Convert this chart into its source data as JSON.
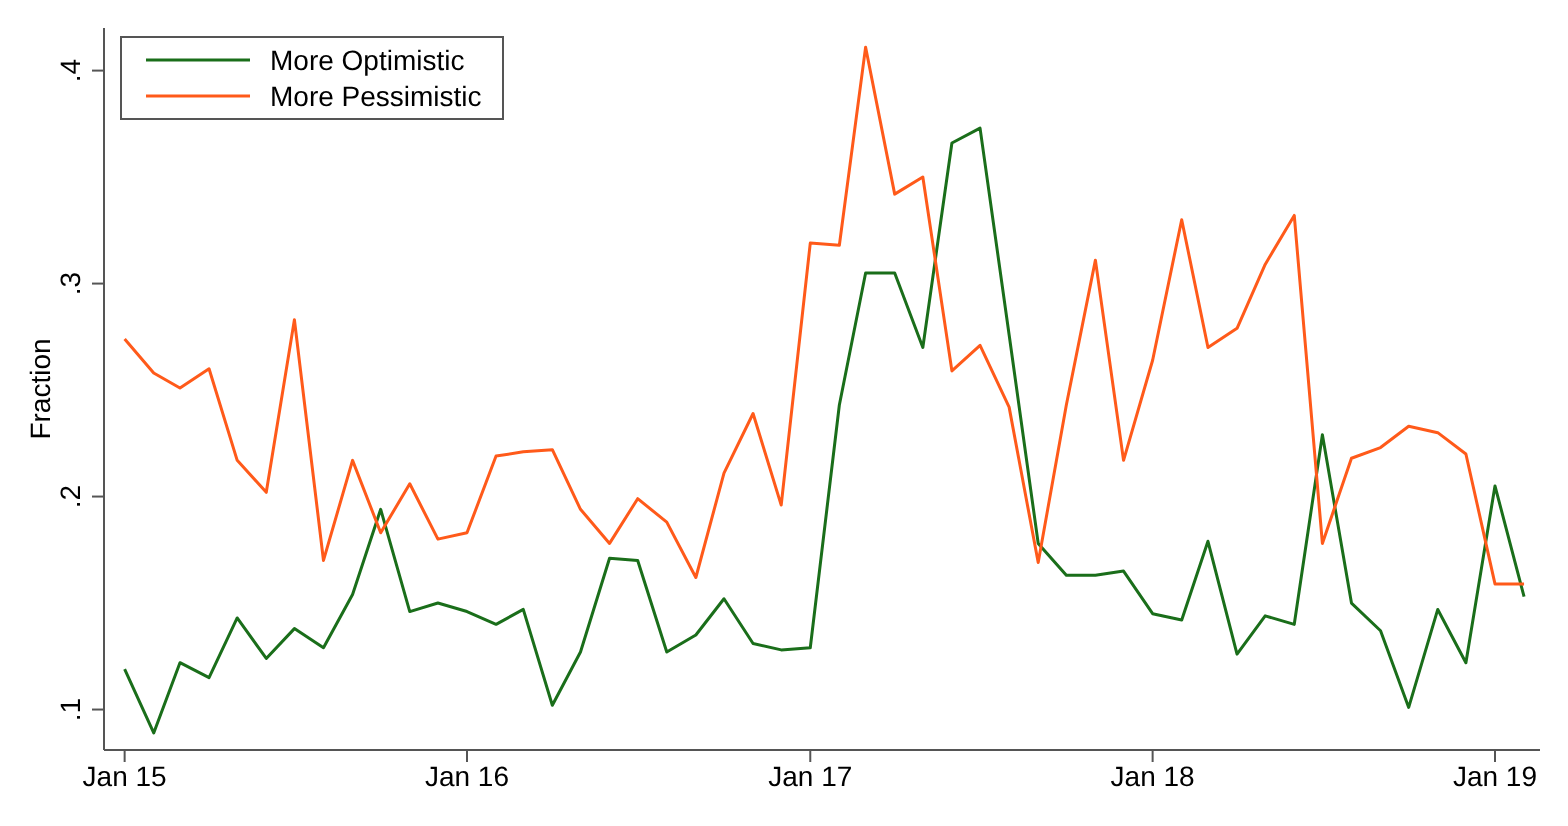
{
  "chart_data": {
    "type": "line",
    "ylabel": "Fraction",
    "x": [
      "2015-01",
      "2015-02",
      "2015-03",
      "2015-04",
      "2015-05",
      "2015-06",
      "2015-07",
      "2015-08",
      "2015-09",
      "2015-10",
      "2015-11",
      "2015-12",
      "2016-01",
      "2016-02",
      "2016-03",
      "2016-04",
      "2016-05",
      "2016-06",
      "2016-07",
      "2016-08",
      "2016-09",
      "2016-10",
      "2016-11",
      "2016-12",
      "2017-01",
      "2017-02",
      "2017-03",
      "2017-04",
      "2017-05",
      "2017-06",
      "2017-07",
      "2017-08",
      "2017-09",
      "2017-10",
      "2017-11",
      "2017-12",
      "2018-01",
      "2018-02",
      "2018-03",
      "2018-04",
      "2018-05",
      "2018-06",
      "2018-07",
      "2018-08",
      "2018-09",
      "2018-10",
      "2018-11",
      "2018-12",
      "2019-01",
      "2019-02"
    ],
    "series": [
      {
        "name": "More Optimistic",
        "color": "#1a6e1a",
        "values": [
          0.119,
          0.089,
          0.122,
          0.115,
          0.143,
          0.124,
          0.138,
          0.129,
          0.154,
          0.194,
          0.146,
          0.15,
          0.146,
          0.14,
          0.147,
          0.102,
          0.127,
          0.171,
          0.17,
          0.127,
          0.135,
          0.152,
          0.131,
          0.128,
          0.129,
          0.243,
          0.305,
          0.305,
          0.27,
          0.366,
          0.373,
          0.276,
          0.178,
          0.163,
          0.163,
          0.165,
          0.145,
          0.142,
          0.179,
          0.126,
          0.144,
          0.14,
          0.229,
          0.15,
          0.137,
          0.101,
          0.147,
          0.122,
          0.205,
          0.153
        ]
      },
      {
        "name": "More Pessimistic",
        "color": "#ff5a1a",
        "values": [
          0.274,
          0.258,
          0.251,
          0.26,
          0.217,
          0.202,
          0.283,
          0.17,
          0.217,
          0.183,
          0.206,
          0.18,
          0.183,
          0.219,
          0.221,
          0.222,
          0.194,
          0.178,
          0.199,
          0.188,
          0.162,
          0.211,
          0.239,
          0.196,
          0.319,
          0.318,
          0.411,
          0.342,
          0.35,
          0.259,
          0.271,
          0.242,
          0.169,
          0.243,
          0.311,
          0.217,
          0.264,
          0.33,
          0.27,
          0.279,
          0.309,
          0.332,
          0.178,
          0.218,
          0.223,
          0.233,
          0.23,
          0.22,
          0.159,
          0.159
        ]
      }
    ],
    "xlim": [
      "2014-12-10",
      "2019-02-18"
    ],
    "xticks": [
      {
        "value": "2015-01",
        "label": "Jan 15"
      },
      {
        "value": "2016-01",
        "label": "Jan 16"
      },
      {
        "value": "2017-01",
        "label": "Jan 17"
      },
      {
        "value": "2018-01",
        "label": "Jan 18"
      },
      {
        "value": "2019-01",
        "label": "Jan 19"
      }
    ],
    "ylim": [
      0.081,
      0.42
    ],
    "yticks": [
      {
        "value": 0.1,
        "label": ".1"
      },
      {
        "value": 0.2,
        "label": ".2"
      },
      {
        "value": 0.3,
        "label": ".3"
      },
      {
        "value": 0.4,
        "label": ".4"
      }
    ],
    "legend": "top left",
    "grid": false
  }
}
